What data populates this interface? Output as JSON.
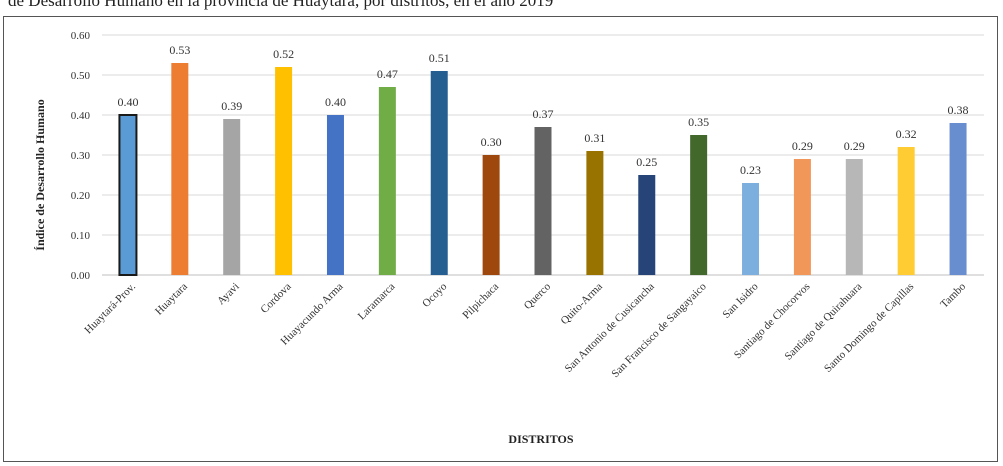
{
  "caption": "de Desarrollo Humano en la provincia de Huaytará, por distritos, en el año 2019",
  "chart_data": {
    "type": "bar",
    "title": "",
    "xlabel": "DISTRITOS",
    "ylabel": "Índice de Desarrollo Humano",
    "ylim": [
      0,
      0.6
    ],
    "yticks": [
      "0.00",
      "0.10",
      "0.20",
      "0.30",
      "0.40",
      "0.50",
      "0.60"
    ],
    "grid": true,
    "legend": "none",
    "categories": [
      "Huaytará-Prov.",
      "Huaytara",
      "Ayavi",
      "Cordova",
      "Huayacundo Arma",
      "Laramarca",
      "Ocoyo",
      "Pilpichaca",
      "Querco",
      "Quito-Arma",
      "San Antonio de Cusicancha",
      "San Francisco de Sangayaico",
      "San Isidro",
      "Santiago de Chocorvos",
      "Santiago de Quirahuara",
      "Santo Domingo de Capillas",
      "Tambo"
    ],
    "values": [
      0.4,
      0.53,
      0.39,
      0.52,
      0.4,
      0.47,
      0.51,
      0.3,
      0.37,
      0.31,
      0.25,
      0.35,
      0.23,
      0.29,
      0.29,
      0.32,
      0.38
    ],
    "labels": [
      "0.40",
      "0.53",
      "0.39",
      "0.52",
      "0.40",
      "0.47",
      "0.51",
      "0.30",
      "0.37",
      "0.31",
      "0.25",
      "0.35",
      "0.23",
      "0.29",
      "0.29",
      "0.32",
      "0.38"
    ],
    "colors": [
      "#5b9bd5",
      "#ed7d31",
      "#a5a5a5",
      "#ffc000",
      "#4472c4",
      "#70ad47",
      "#255e91",
      "#9e480e",
      "#636363",
      "#997300",
      "#264478",
      "#43682b",
      "#7cafdd",
      "#f1975a",
      "#b7b7b7",
      "#ffcd33",
      "#698ed0"
    ]
  }
}
